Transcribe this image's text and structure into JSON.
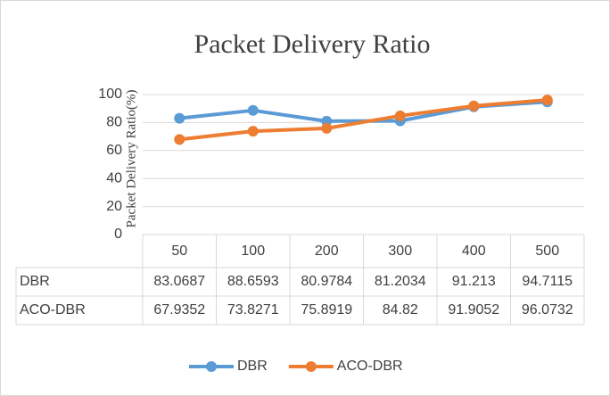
{
  "chart_data": {
    "type": "line",
    "title": "Packet Delivery Ratio",
    "y_label": "Packet Delivery Ratio(%)",
    "categories": [
      "50",
      "100",
      "200",
      "300",
      "400",
      "500"
    ],
    "series": [
      {
        "name": "DBR",
        "color": "#5b9bd5",
        "values": [
          83.0687,
          88.6593,
          80.9784,
          81.2034,
          91.213,
          94.7115
        ]
      },
      {
        "name": "ACO-DBR",
        "color": "#ed7d31",
        "values": [
          67.9352,
          73.8271,
          75.8919,
          84.82,
          91.9052,
          96.0732
        ]
      }
    ],
    "ylim": [
      0,
      100
    ],
    "yticks": [
      0,
      20,
      40,
      60,
      80,
      100
    ],
    "grid": true,
    "legend": "bottom",
    "data_table": true
  }
}
